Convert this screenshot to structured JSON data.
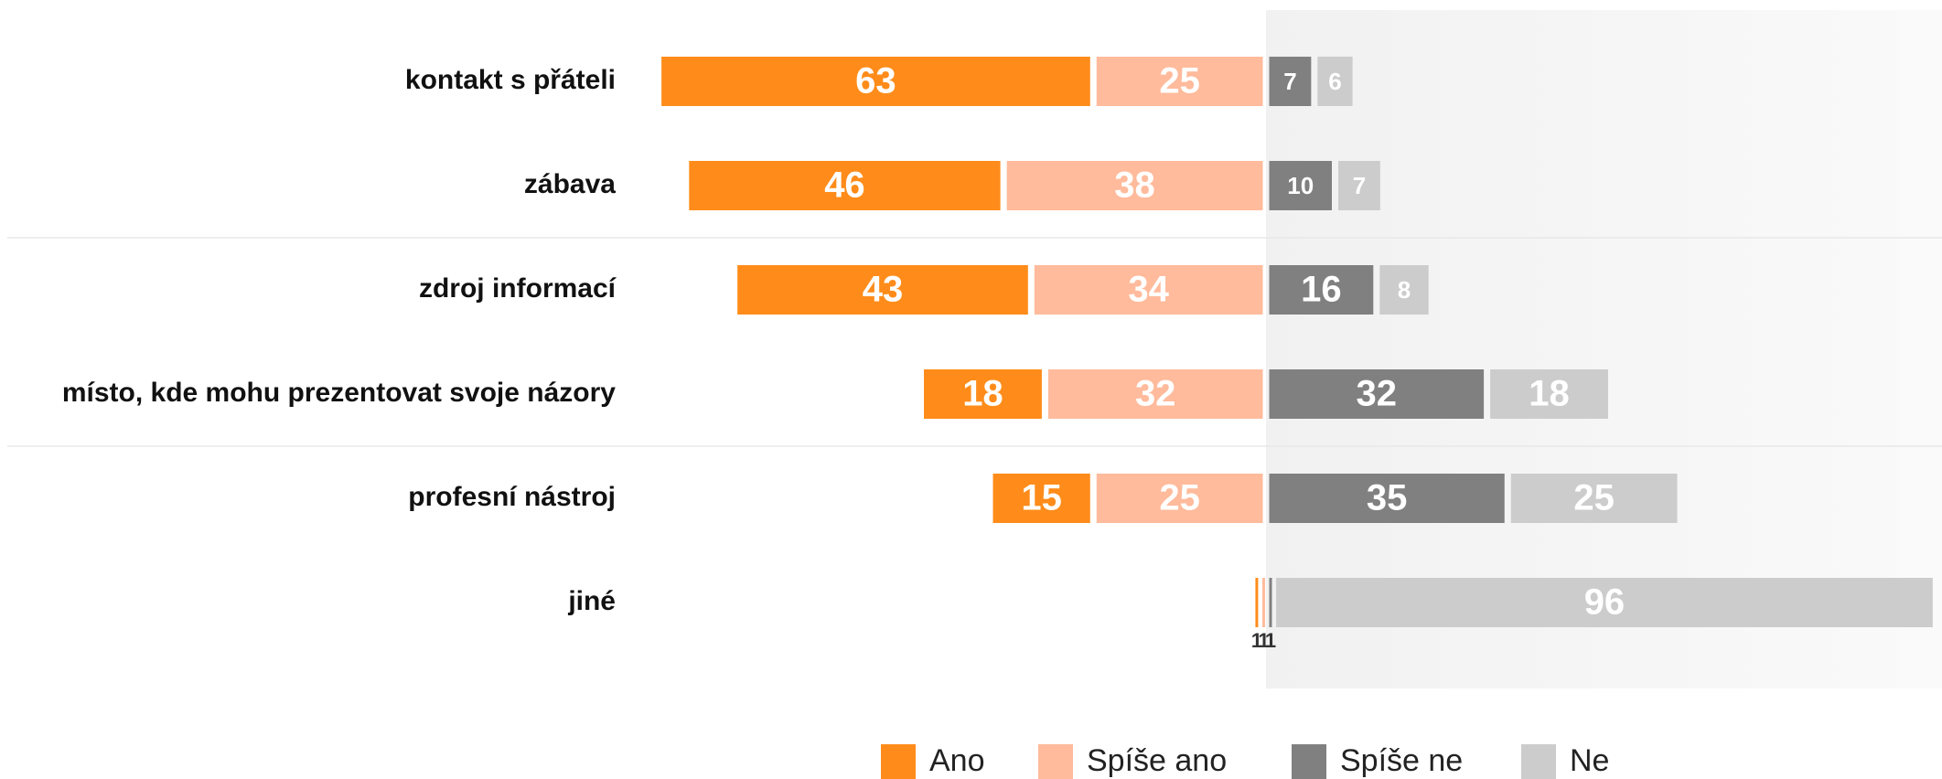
{
  "chart_data": {
    "type": "bar",
    "categories": [
      "kontakt s přáteli",
      "zábava",
      "zdroj informací",
      "místo, kde mohu prezentovat svoje názory",
      "profesní nástroj",
      "jiné"
    ],
    "series": [
      {
        "name": "Ano",
        "color": "#ff8c1a",
        "values": [
          63,
          46,
          43,
          18,
          15,
          1
        ]
      },
      {
        "name": "Spíše ano",
        "color": "#ffbb9c",
        "values": [
          25,
          38,
          34,
          32,
          25,
          1
        ]
      },
      {
        "name": "Spíše ne",
        "color": "#808080",
        "values": [
          7,
          10,
          16,
          32,
          35,
          1
        ]
      },
      {
        "name": "Ne",
        "color": "#cccccc",
        "values": [
          6,
          7,
          8,
          18,
          25,
          96
        ]
      }
    ]
  }
}
